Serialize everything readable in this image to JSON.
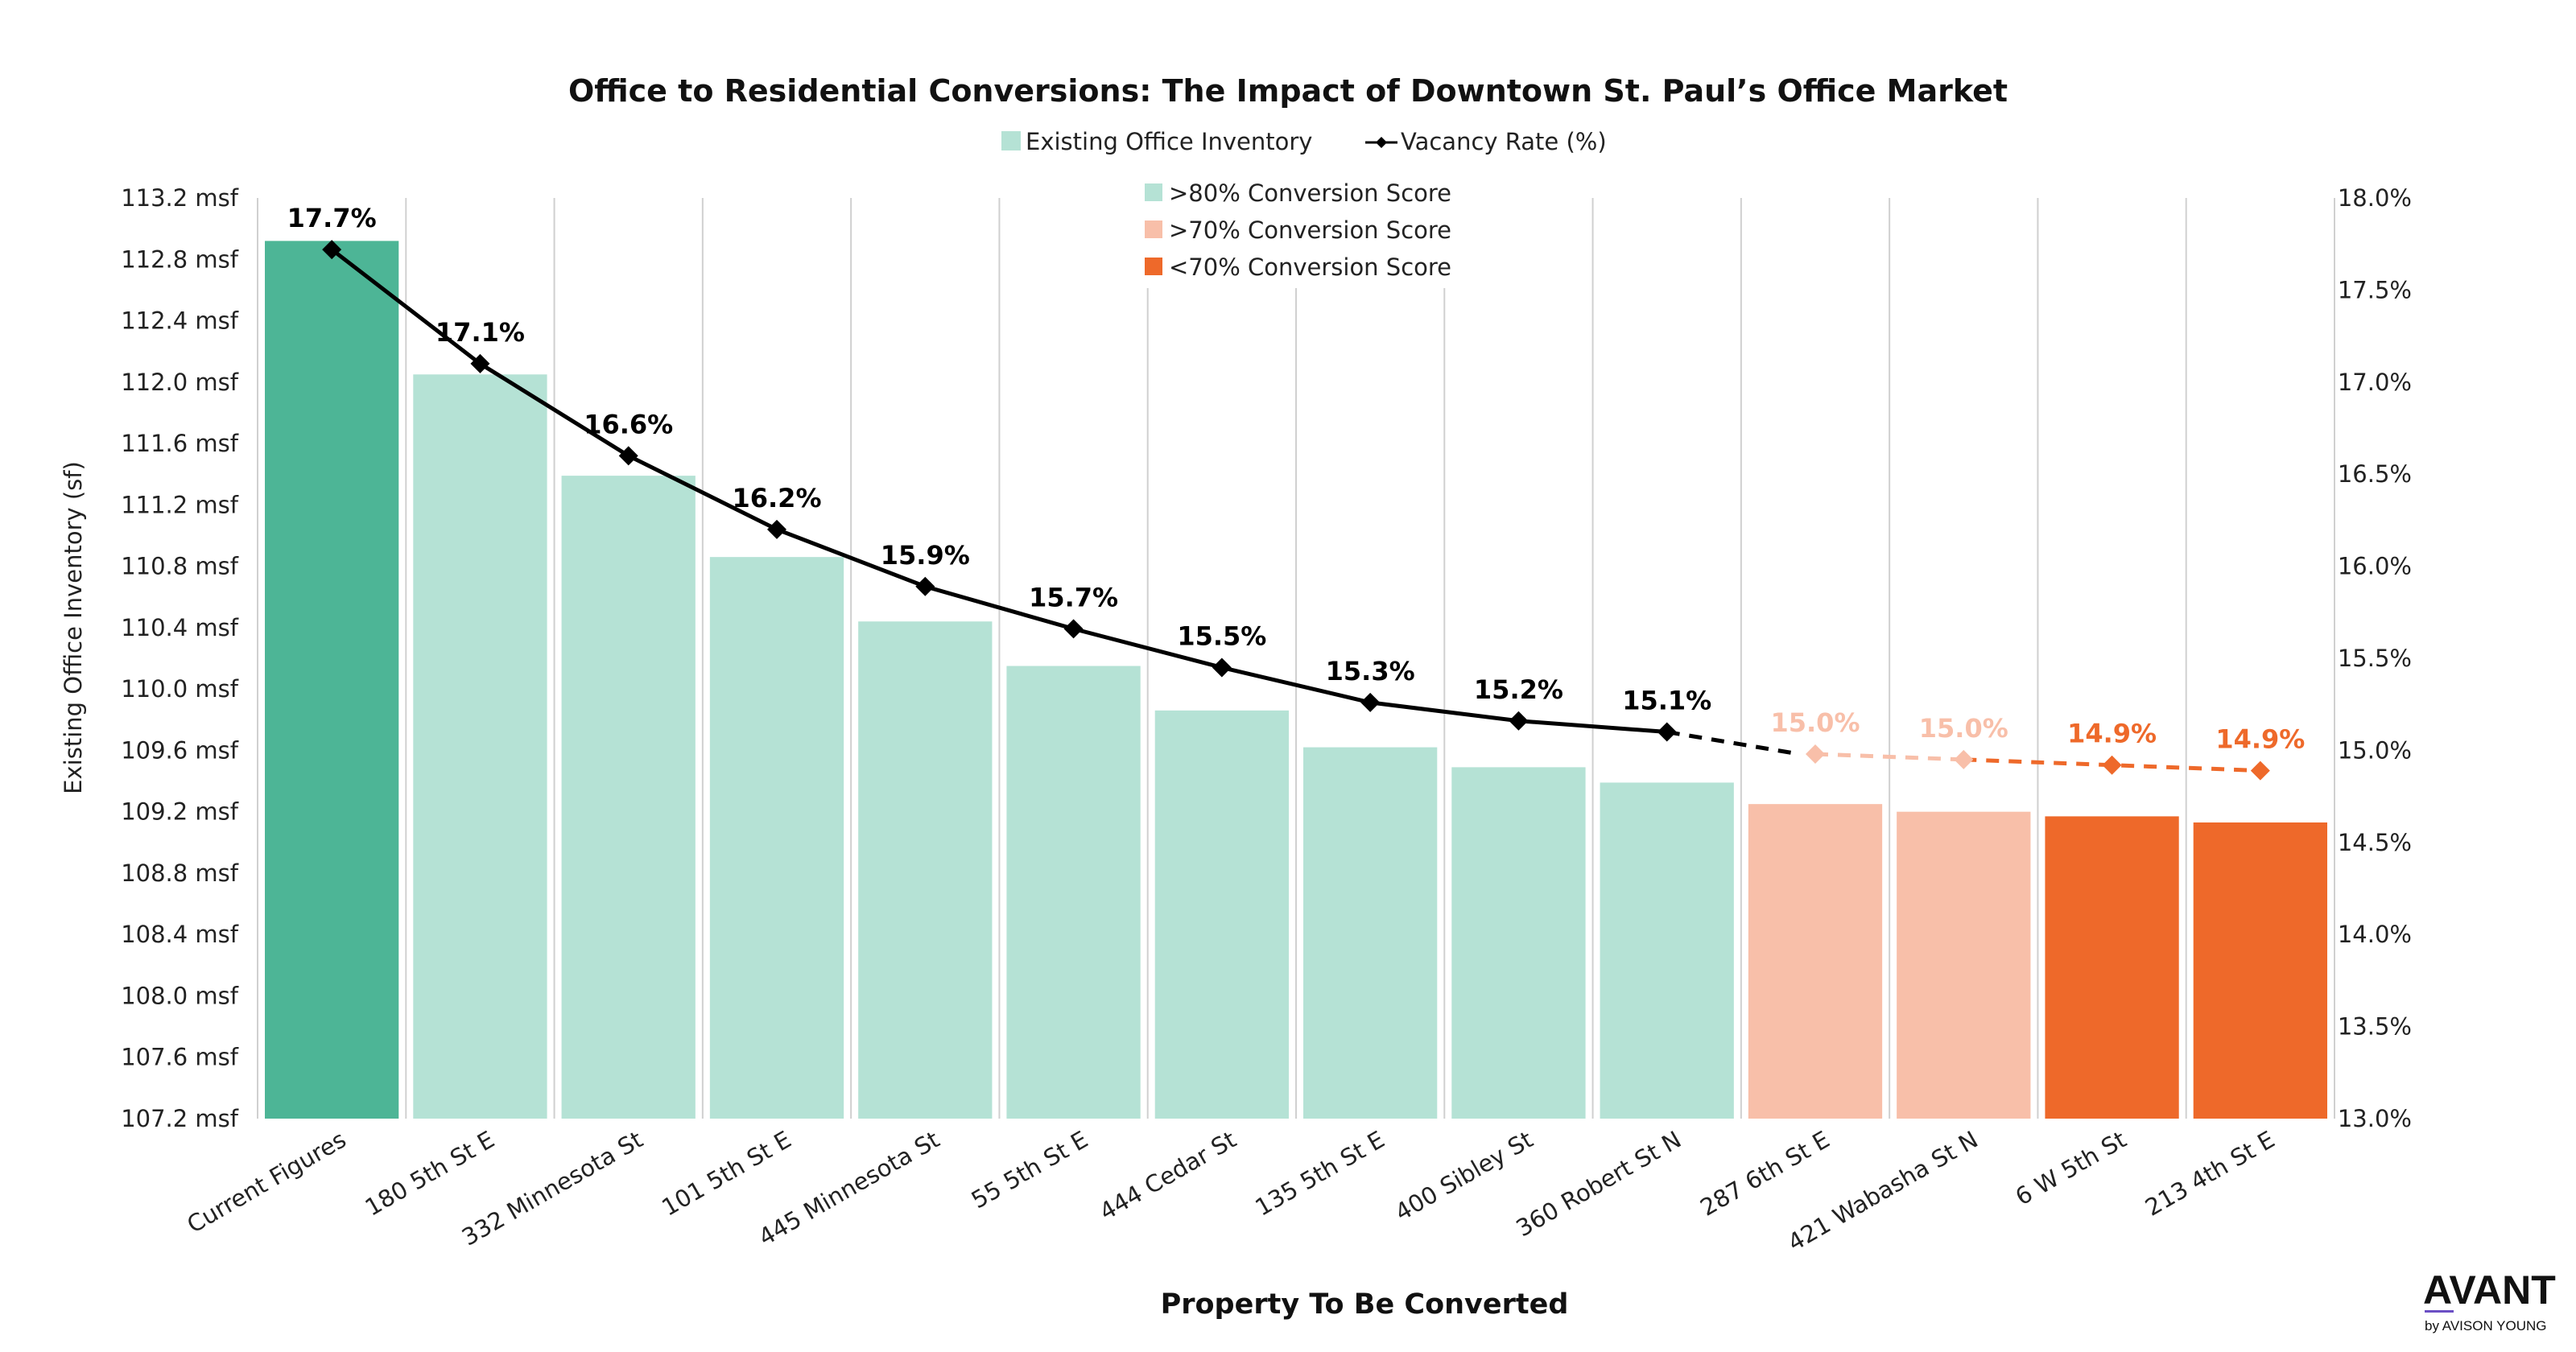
{
  "chart_data": {
    "type": "bar",
    "title": "Office to Residential Conversions: The Impact of Downtown St. Paul’s Office Market",
    "xlabel": "Property To Be Converted",
    "ylabel": "Existing Office Inventory (sf)",
    "ylim": [
      107.2,
      113.2
    ],
    "y_ticks": [
      "107.2 msf",
      "107.6 msf",
      "108.0 msf",
      "108.4 msf",
      "108.8 msf",
      "109.2 msf",
      "109.6 msf",
      "110.0 msf",
      "110.4 msf",
      "110.8 msf",
      "111.2 msf",
      "111.6 msf",
      "112.0 msf",
      "112.4 msf",
      "112.8 msf",
      "113.2 msf"
    ],
    "y2lim": [
      13.0,
      18.0
    ],
    "y2_ticks": [
      "13.0%",
      "13.5%",
      "14.0%",
      "14.5%",
      "15.0%",
      "15.5%",
      "16.0%",
      "16.5%",
      "17.0%",
      "17.5%",
      "18.0%"
    ],
    "categories": [
      "Current Figures",
      "180 5th St E",
      "332 Minnesota St",
      "101 5th St E",
      "445 Minnesota St",
      "55 5th St E",
      "444 Cedar St",
      "135 5th St E",
      "400 Sibley St",
      "360 Robert St N",
      "287 6th St E",
      "421 Wabasha St N",
      "6 W 5th St",
      "213 4th St E"
    ],
    "series": [
      {
        "name": "Existing Office Inventory",
        "axis": "left",
        "kind": "bar",
        "values": [
          112.92,
          112.05,
          111.39,
          110.86,
          110.44,
          110.15,
          109.86,
          109.62,
          109.49,
          109.39,
          109.25,
          109.2,
          109.17,
          109.13
        ],
        "groups": [
          "current",
          "gt80",
          "gt80",
          "gt80",
          "gt80",
          "gt80",
          "gt80",
          "gt80",
          "gt80",
          "gt80",
          "gt70",
          "gt70",
          "lt70",
          "lt70"
        ]
      },
      {
        "name": "Vacancy Rate (%)",
        "axis": "right",
        "kind": "line",
        "values": [
          17.72,
          17.1,
          16.6,
          16.2,
          15.89,
          15.66,
          15.45,
          15.26,
          15.16,
          15.1,
          14.98,
          14.95,
          14.92,
          14.89
        ],
        "labels": [
          "17.7%",
          "17.1%",
          "16.6%",
          "16.2%",
          "15.9%",
          "15.7%",
          "15.5%",
          "15.3%",
          "15.2%",
          "15.1%",
          "15.0%",
          "15.0%",
          "14.9%",
          "14.9%"
        ]
      }
    ],
    "legend": {
      "top": [
        "Existing Office Inventory",
        "Vacancy Rate (%)"
      ],
      "groups": [
        ">80% Conversion Score",
        ">70% Conversion Score",
        "<70% Conversion Score"
      ],
      "placement": "top"
    },
    "colors": {
      "current": "#4db596",
      "gt80": "#b5e2d5",
      "gt70": "#f8bfa9",
      "lt70": "#ee692a",
      "line": "#000000",
      "gridline": "#d0d0d0"
    }
  },
  "logo": {
    "main": "AVANT",
    "sub": "by AVISON YOUNG",
    "accent": "#6b4fc4"
  }
}
